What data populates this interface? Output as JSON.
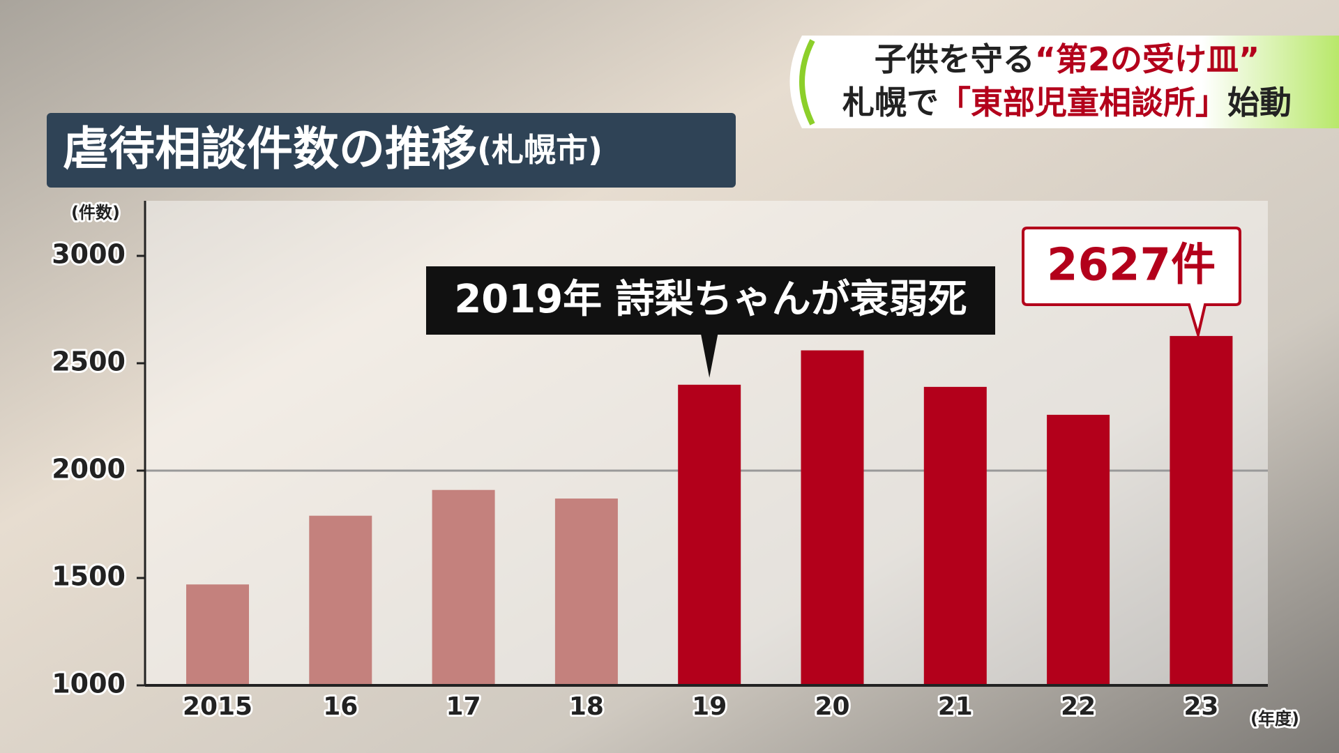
{
  "header": {
    "lines": [
      [
        {
          "text": "子供を守る",
          "emphasis": false
        },
        {
          "text": "“第2の受け皿”",
          "emphasis": true
        }
      ],
      [
        {
          "text": "札幌で",
          "emphasis": false
        },
        {
          "text": "「東部児童相談所」",
          "emphasis": true
        },
        {
          "text": "始動",
          "emphasis": false
        }
      ]
    ]
  },
  "chart_data": {
    "type": "bar",
    "title": "虐待相談件数の推移",
    "subtitle": "(札幌市)",
    "y_label": "(件数)",
    "x_label": "(年度)",
    "categories": [
      "2015",
      "16",
      "17",
      "18",
      "19",
      "20",
      "21",
      "22",
      "23"
    ],
    "values": [
      1470,
      1790,
      1910,
      1870,
      2400,
      2560,
      2390,
      2260,
      2627
    ],
    "value_labels": [
      null,
      null,
      null,
      null,
      null,
      null,
      null,
      null,
      "2627件"
    ],
    "colors": [
      "#c4817d",
      "#c4817d",
      "#c4817d",
      "#c4817d",
      "#b3001b",
      "#b3001b",
      "#b3001b",
      "#b3001b",
      "#b3001b"
    ],
    "ylim": [
      1000,
      3000
    ],
    "yticks": [
      1000,
      1500,
      2000,
      2500,
      3000
    ],
    "reference_line": 2000,
    "annotation": "2019年 詩梨ちゃんが衰弱死"
  }
}
